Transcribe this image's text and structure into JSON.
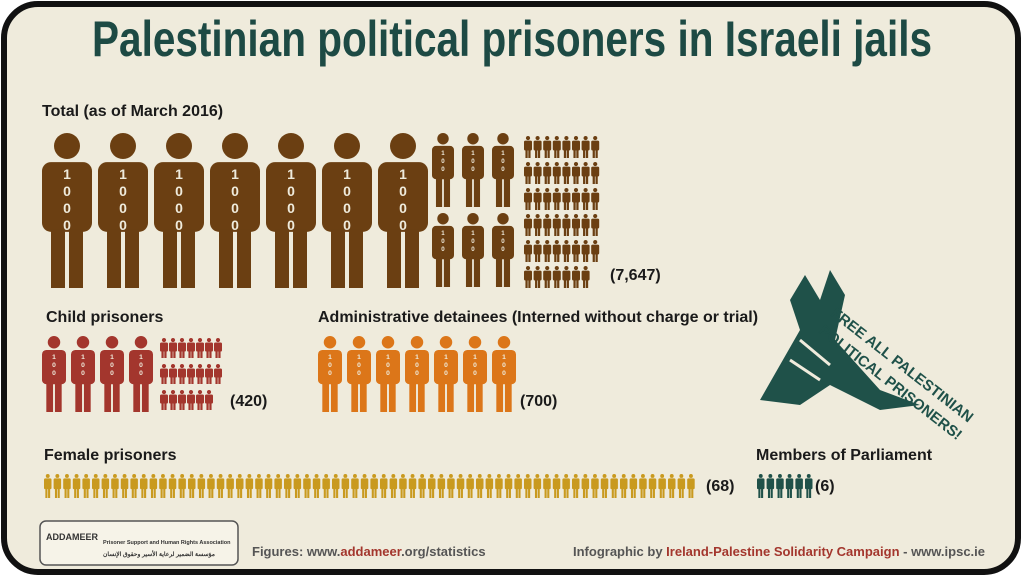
{
  "title": "Palestinian political prisoners in Israeli jails",
  "icon_units": [
    1000,
    100
  ],
  "sections": [
    {
      "label": "Total (as of March 2016)",
      "value": 7647,
      "value_label": "(7,647)",
      "color": "#6b3f12"
    },
    {
      "label": "Child prisoners",
      "value": 420,
      "value_label": "(420)",
      "color": "#a3362d"
    },
    {
      "label": "Administrative detainees (Interned without charge or trial)",
      "value": 700,
      "value_label": "(700)",
      "color": "#dc7619"
    },
    {
      "label": "Female prisoners",
      "value": 68,
      "value_label": "(68)",
      "color": "#c99a1f"
    },
    {
      "label": "Members of Parliament",
      "value": 6,
      "value_label": "(6)",
      "color": "#1f5149"
    }
  ],
  "badge": [
    "FREE ALL PALESTINIAN",
    "POLITICAL PRISONERS!"
  ],
  "logo": {
    "name": "ADDAMEER",
    "line1": "Prisoner Support and Human Rights Association",
    "line2": "مؤسسة الضمير لرعاية الأسير وحقوق الإنسان"
  },
  "footer": {
    "source_prefix": "Figures: www.",
    "source_highlight": "addameer",
    "source_suffix": ".org/statistics",
    "credit_prefix": "Infographic by ",
    "credit_highlight": "Ireland-Palestine Solidarity Campaign",
    "credit_suffix": " - www.ipsc.ie"
  }
}
